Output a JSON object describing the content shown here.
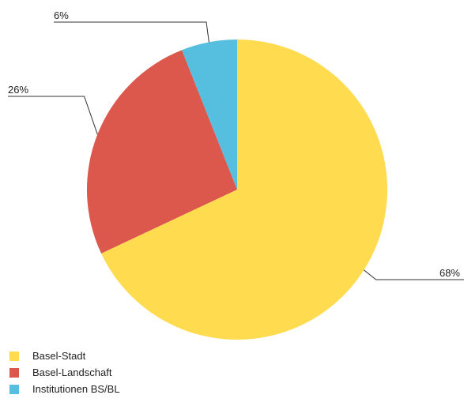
{
  "chart_data": {
    "type": "pie",
    "title": "",
    "slices": [
      {
        "label": "Basel-Stadt",
        "value": 68,
        "value_label": "68%",
        "color": "#FFDB4F"
      },
      {
        "label": "Basel-Landschaft",
        "value": 26,
        "value_label": "26%",
        "color": "#DC574C"
      },
      {
        "label": "Institutionen BS/BL",
        "value": 6,
        "value_label": "6%",
        "color": "#56BEDE"
      }
    ],
    "start": "12 o'clock",
    "direction": "clockwise",
    "data_labels": "outside, with leader lines",
    "legend_position": "bottom-left"
  }
}
